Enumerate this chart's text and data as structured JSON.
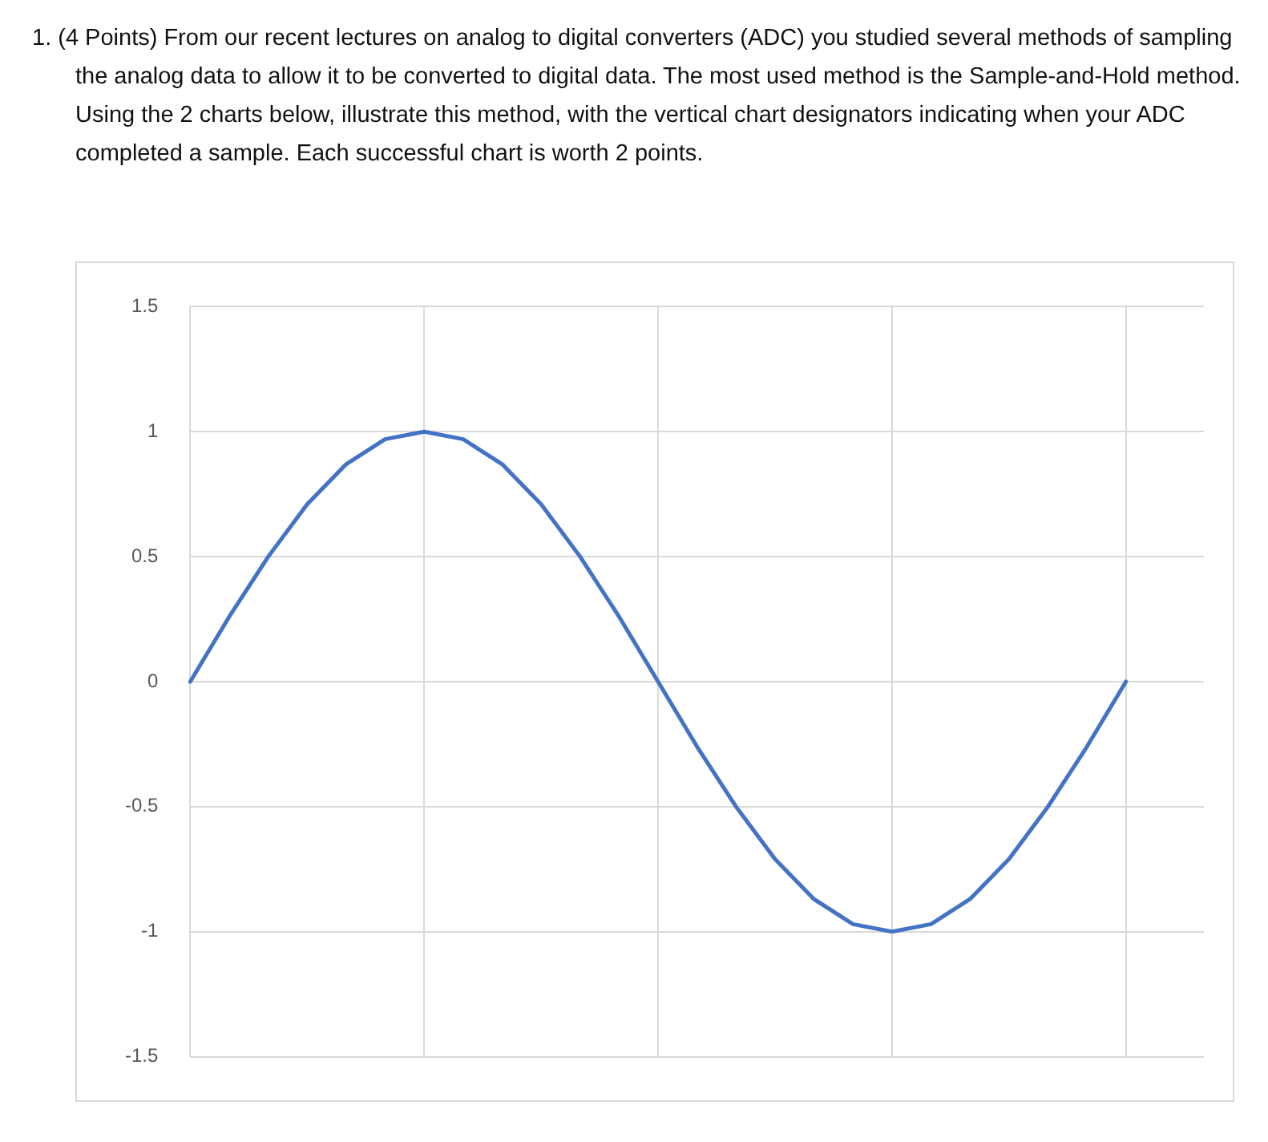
{
  "chart_data": {
    "type": "line",
    "title": "1. (4 Points) From our recent lectures on analog to digital converters (ADC) you studied several methods of sampling the analog data to allow it to be converted to digital data. The most used method is the Sample-and-Hold method. Using the 2 charts below, illustrate this method, with the vertical chart designators indicating when your ADC completed a sample. Each successful chart is worth 2 points.",
    "categories": [
      null,
      null,
      null,
      null,
      null,
      null,
      null,
      null,
      null,
      null,
      null,
      null,
      null,
      null,
      null,
      null,
      null,
      null,
      null,
      null,
      null,
      null,
      null,
      null,
      null,
      null,
      null
    ],
    "series": [
      {
        "color": "#4472c4",
        "values": [
          0,
          0.26,
          0.5,
          0.71,
          0.87,
          0.97,
          1,
          0.97,
          0.87,
          0.71,
          0.5,
          0.26,
          0,
          -0.26,
          -0.5,
          -0.71,
          -0.87,
          -0.97,
          -1,
          -0.97,
          -0.87,
          -0.71,
          -0.5,
          -0.26,
          0,
          null,
          null
        ]
      }
    ],
    "ylim": [
      -1.5,
      1.5
    ],
    "yticks": [
      -1.5,
      -1,
      -0.5,
      0,
      0.5,
      1,
      1.5
    ],
    "grid": true,
    "tick_labels": "y",
    "marker": "none",
    "line_style": "solid"
  }
}
